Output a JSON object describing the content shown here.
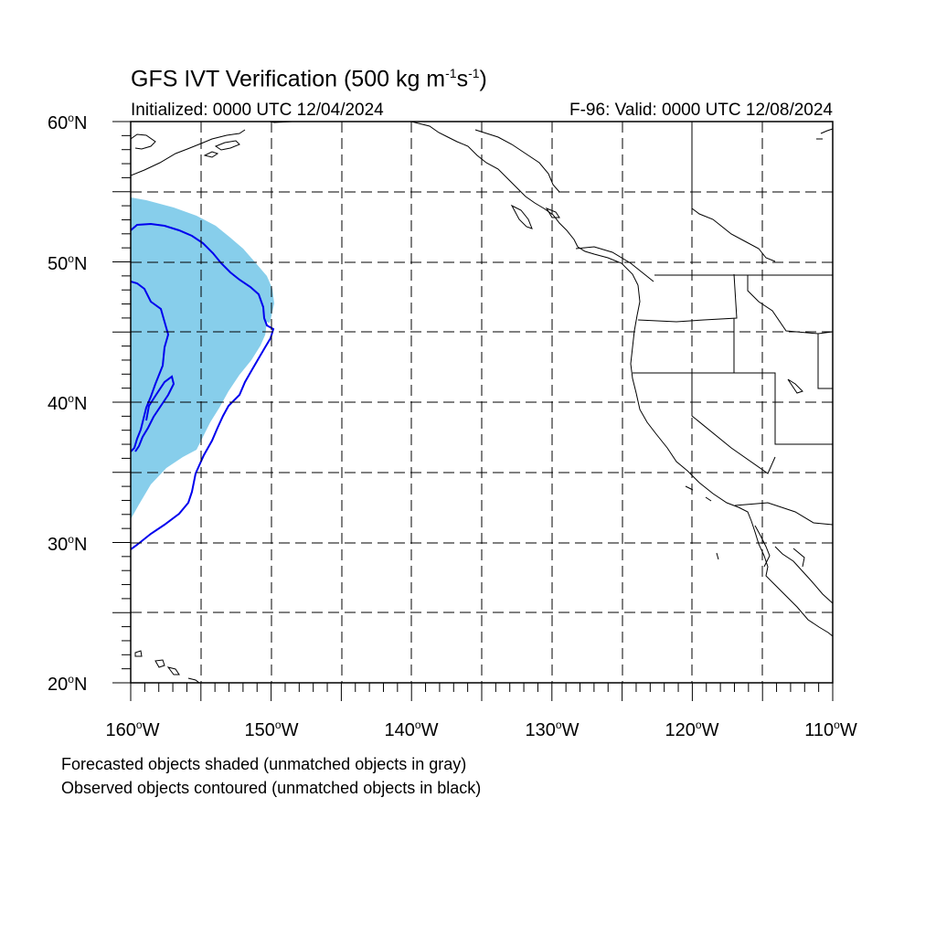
{
  "title": {
    "main": "GFS IVT Verification (500 kg m",
    "exp1": "-1",
    "mid": "s",
    "exp2": "-1",
    "end": ")"
  },
  "init_label": "Initialized: 0000 UTC 12/04/2024",
  "valid_label": "F-96: Valid: 0000 UTC 12/08/2024",
  "lat_labels": [
    {
      "num": "60",
      "deg": "o",
      "hem": "N"
    },
    {
      "num": "50",
      "deg": "o",
      "hem": "N"
    },
    {
      "num": "40",
      "deg": "o",
      "hem": "N"
    },
    {
      "num": "30",
      "deg": "o",
      "hem": "N"
    },
    {
      "num": "20",
      "deg": "o",
      "hem": "N"
    }
  ],
  "lon_labels": [
    {
      "num": "160",
      "deg": "o",
      "hem": "W"
    },
    {
      "num": "150",
      "deg": "o",
      "hem": "W"
    },
    {
      "num": "140",
      "deg": "o",
      "hem": "W"
    },
    {
      "num": "130",
      "deg": "o",
      "hem": "W"
    },
    {
      "num": "120",
      "deg": "o",
      "hem": "W"
    },
    {
      "num": "110",
      "deg": "o",
      "hem": "W"
    }
  ],
  "notes": {
    "forecast": "Forecasted objects shaded (unmatched objects in gray)",
    "observed": "Observed objects contoured (unmatched objects in black)"
  },
  "colors": {
    "forecast_fill": "#87CEEB",
    "observed_contour": "#0000EE",
    "coast": "#000000",
    "grid": "#000000"
  }
}
